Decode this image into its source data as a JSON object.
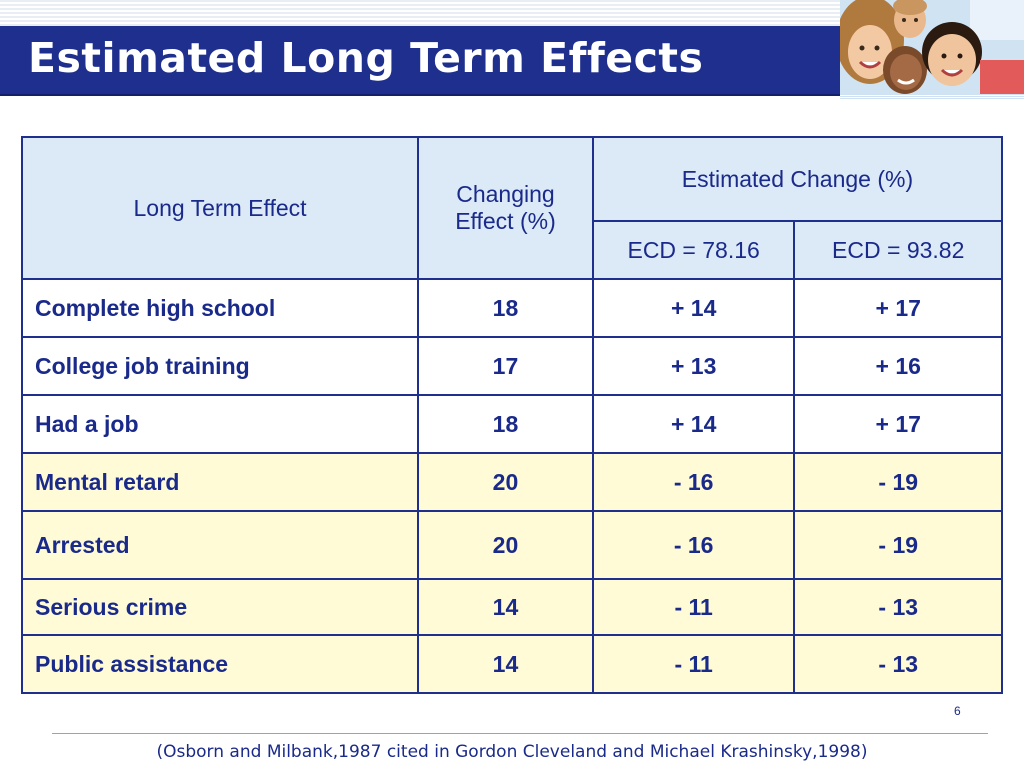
{
  "slide": {
    "title": "Estimated Long Term Effects",
    "page_number": "6",
    "citation": "(Osborn and Milbank,1987 cited in Gordon Cleveland and Michael Krashinsky,1998)"
  },
  "table": {
    "headers": {
      "effect": "Long Term Effect",
      "changing": "Changing Effect (%)",
      "estimated": "Estimated Change (%)",
      "ecd1": "ECD = 78.16",
      "ecd2": "ECD = 93.82"
    },
    "rows": [
      {
        "effect": "Complete high school",
        "changing": "18",
        "ecd1": "+ 14",
        "ecd2": "+ 17"
      },
      {
        "effect": "College job training",
        "changing": "17",
        "ecd1": "+ 13",
        "ecd2": "+ 16"
      },
      {
        "effect": "Had a job",
        "changing": "18",
        "ecd1": "+ 14",
        "ecd2": "+ 17"
      },
      {
        "effect": "Mental retard",
        "changing": "20",
        "ecd1": "- 16",
        "ecd2": "- 19"
      },
      {
        "effect": "Arrested",
        "changing": "20",
        "ecd1": "- 16",
        "ecd2": "- 19"
      },
      {
        "effect": "Serious crime",
        "changing": "14",
        "ecd1": "- 11",
        "ecd2": "- 13"
      },
      {
        "effect": "Public assistance",
        "changing": "14",
        "ecd1": "- 11",
        "ecd2": "- 13"
      }
    ]
  },
  "colors": {
    "title_bar": "#1f2f8e",
    "text": "#1a2a8a",
    "header_bg": "#dce9f7",
    "highlight_row_bg": "#fffbd6"
  }
}
